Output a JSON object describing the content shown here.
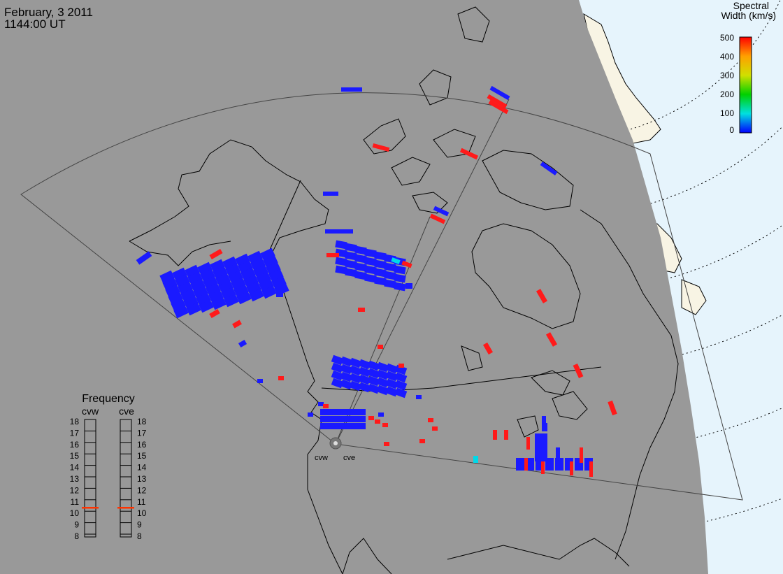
{
  "header": {
    "date": "February, 3 2011",
    "time": "1144:00 UT"
  },
  "colorbar": {
    "title_line1": "Spectral",
    "title_line2": "Width (km/s)",
    "ticks": [
      "500",
      "400",
      "300",
      "200",
      "100",
      "0"
    ]
  },
  "frequency_panel": {
    "title": "Frequency",
    "radars": [
      "cvw",
      "cve"
    ],
    "scale": [
      "18",
      "17",
      "16",
      "15",
      "14",
      "13",
      "12",
      "11",
      "10",
      "9",
      "8"
    ],
    "current_mhz": {
      "cvw": 10.8,
      "cve": 10.8
    }
  },
  "radar_sites": [
    "cvw",
    "cve"
  ],
  "colors": {
    "night_side": "#999999",
    "day_side": "#e6f4fc",
    "land_day": "#f8f4e4",
    "outline": "#000000",
    "low_width": "#1a1aff",
    "mid_width": "#00d8e8",
    "high_width": "#ff1a1a",
    "frequency_marker": "#ff3300"
  }
}
